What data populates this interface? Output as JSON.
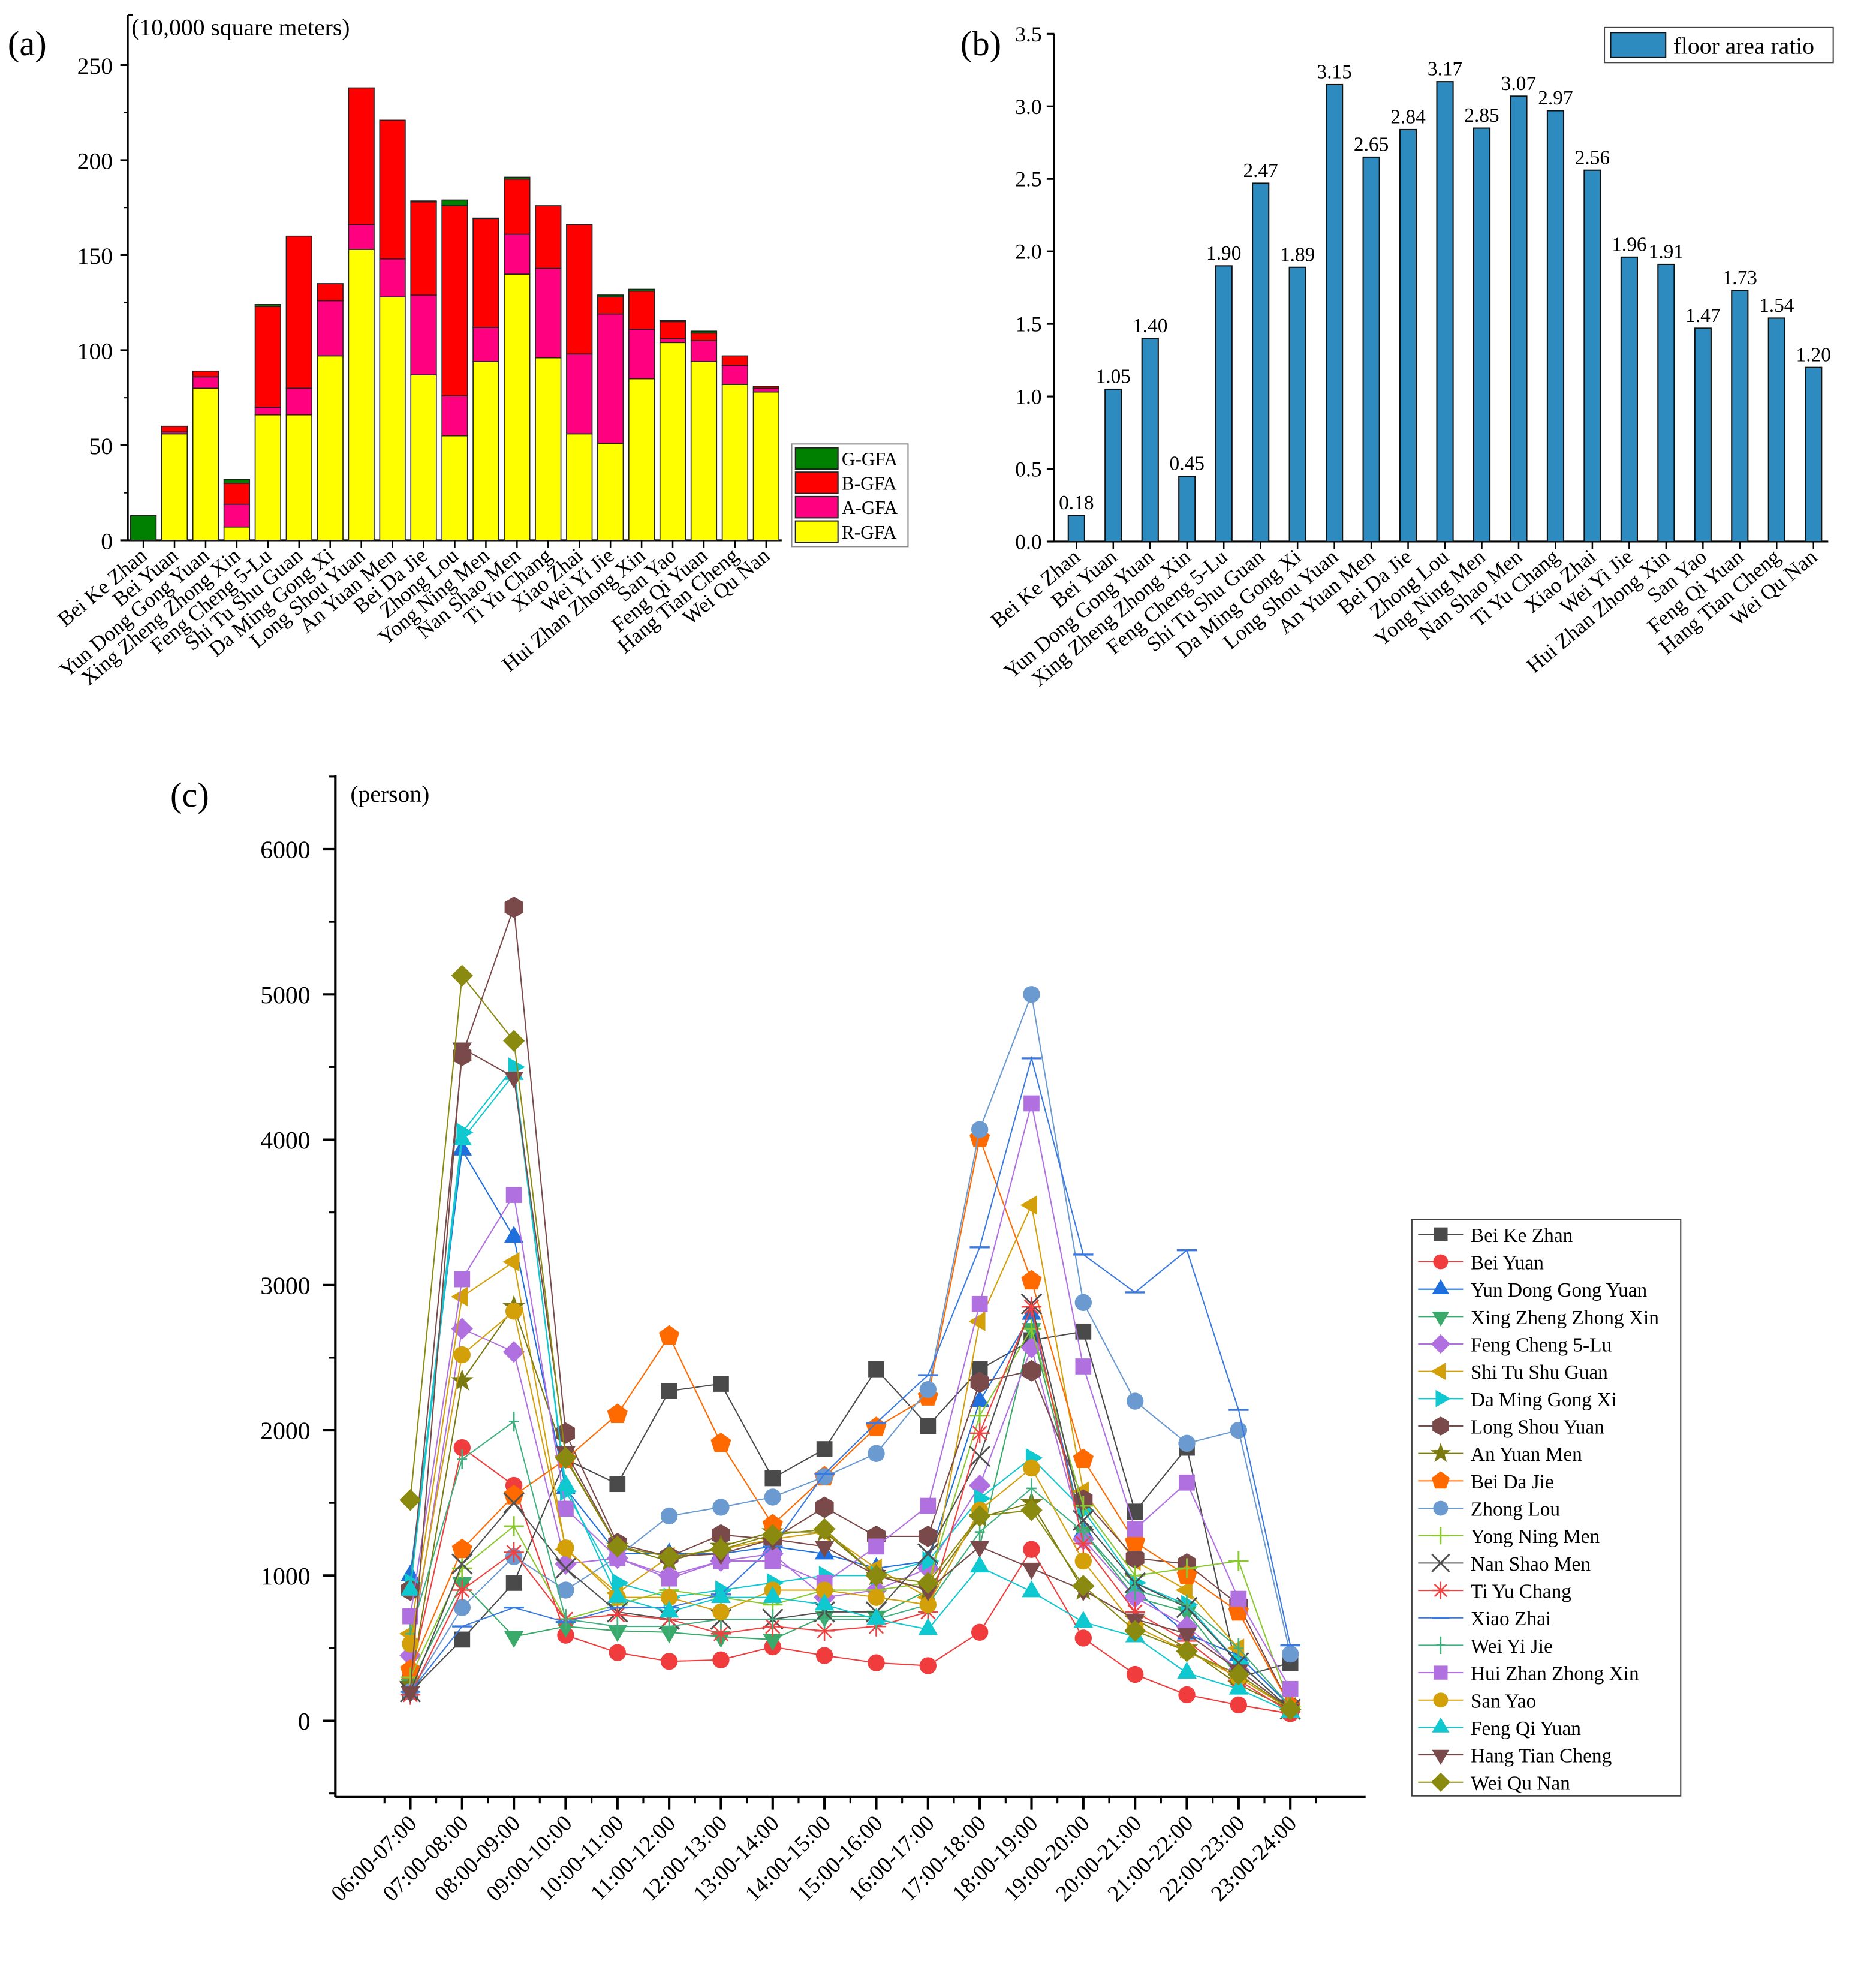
{
  "panel_labels": {
    "a": "(a)",
    "b": "(b)",
    "c": "(c)"
  },
  "chart_data": [
    {
      "type": "bar",
      "stacked": true,
      "id": "a",
      "ylabel": "(10,000 square meters)",
      "ylim": [
        0,
        250
      ],
      "yticks": [
        0,
        50,
        100,
        150,
        200,
        250
      ],
      "legend_position": "bottom-right",
      "categories": [
        "Bei Ke Zhan",
        "Bei Yuan",
        "Yun Dong Gong Yuan",
        "Xing Zheng Zhong Xin",
        "Feng Cheng 5-Lu",
        "Shi Tu Shu Guan",
        "Da Ming Gong Xi",
        "Long Shou Yuan",
        "An Yuan Men",
        "Bei Da Jie",
        "Zhong Lou",
        "Yong Ning Men",
        "Nan Shao Men",
        "Ti Yu Chang",
        "Xiao Zhai",
        "Wei Yi Jie",
        "Hui Zhan Zhong Xin",
        "San Yao",
        "Feng Qi Yuan",
        "Hang Tian Cheng",
        "Wei Qu Nan"
      ],
      "series": [
        {
          "name": "R-GFA",
          "color": "#ffff00",
          "values": [
            0,
            56,
            80,
            7,
            66,
            66,
            97,
            153,
            128,
            87,
            55,
            94,
            140,
            96,
            56,
            51,
            85,
            104,
            94,
            82,
            78
          ]
        },
        {
          "name": "A-GFA",
          "color": "#ff0080",
          "values": [
            0,
            1,
            6,
            12,
            4,
            14,
            29,
            13,
            20,
            42,
            21,
            18,
            21,
            47,
            42,
            68,
            26,
            2,
            11,
            10,
            2
          ]
        },
        {
          "name": "B-GFA",
          "color": "#ff0000",
          "values": [
            0,
            3,
            3,
            11,
            53,
            80,
            9,
            72,
            73,
            49,
            100,
            57,
            29,
            33,
            68,
            9,
            20,
            9,
            4,
            5,
            1
          ]
        },
        {
          "name": "G-GFA",
          "color": "#008000",
          "values": [
            13,
            0,
            0,
            2,
            1,
            0,
            0,
            0,
            0,
            0.5,
            3,
            0.5,
            1,
            0,
            0,
            1,
            1,
            0.5,
            1,
            0,
            0
          ]
        }
      ],
      "legend_order": [
        "G-GFA",
        "B-GFA",
        "A-GFA",
        "R-GFA"
      ]
    },
    {
      "type": "bar",
      "id": "b",
      "ylim": [
        0,
        3.5
      ],
      "yticks": [
        "0.0",
        "0.5",
        "1.0",
        "1.5",
        "2.0",
        "2.5",
        "3.0",
        "3.5"
      ],
      "legend_position": "top-right",
      "categories": [
        "Bei Ke Zhan",
        "Bei Yuan",
        "Yun Dong Gong Yuan",
        "Xing Zheng Zhong Xin",
        "Feng Cheng 5-Lu",
        "Shi Tu Shu Guan",
        "Da Ming Gong Xi",
        "Long Shou Yuan",
        "An Yuan Men",
        "Bei Da Jie",
        "Zhong Lou",
        "Yong Ning Men",
        "Nan Shao Men",
        "Ti Yu Chang",
        "Xiao Zhai",
        "Wei Yi Jie",
        "Hui Zhan Zhong Xin",
        "San Yao",
        "Feng Qi Yuan",
        "Hang Tian Cheng",
        "Wei Qu Nan"
      ],
      "series": [
        {
          "name": "floor area ratio",
          "color": "#2e8bc0",
          "values": [
            0.18,
            1.05,
            1.4,
            0.45,
            1.9,
            2.47,
            1.89,
            3.15,
            2.65,
            2.84,
            3.17,
            2.85,
            3.07,
            2.97,
            2.56,
            1.96,
            1.91,
            1.47,
            1.73,
            1.54,
            1.2
          ],
          "labels": [
            "0.18",
            "1.05",
            "1.40",
            "0.45",
            "1.90",
            "2.47",
            "1.89",
            "3.15",
            "2.65",
            "2.84",
            "3.17",
            "2.85",
            "3.07",
            "2.97",
            "2.56",
            "1.96",
            "1.91",
            "1.47",
            "1.73",
            "1.54",
            "1.20"
          ]
        }
      ]
    },
    {
      "type": "line",
      "id": "c",
      "ylabel": "(person)",
      "ylim": [
        -500,
        6500
      ],
      "yticks": [
        0,
        1000,
        2000,
        3000,
        4000,
        5000,
        6000
      ],
      "legend_position": "right",
      "x": [
        "06:00-07:00",
        "07:00-08:00",
        "08:00-09:00",
        "09:00-10:00",
        "10:00-11:00",
        "11:00-12:00",
        "12:00-13:00",
        "13:00-14:00",
        "14:00-15:00",
        "15:00-16:00",
        "16:00-17:00",
        "17:00-18:00",
        "18:00-19:00",
        "19:00-20:00",
        "20:00-21:00",
        "21:00-22:00",
        "22:00-23:00",
        "23:00-24:00"
      ],
      "series": [
        {
          "name": "Bei Ke Zhan",
          "color": "#4a4a4a",
          "marker": "square",
          "values": [
            200,
            560,
            950,
            1800,
            1630,
            2270,
            2320,
            1670,
            1870,
            2420,
            2030,
            2420,
            2620,
            2680,
            1440,
            1880,
            300,
            400
          ]
        },
        {
          "name": "Bei Yuan",
          "color": "#f03c3c",
          "marker": "circle",
          "values": [
            300,
            1880,
            1620,
            590,
            470,
            410,
            420,
            510,
            450,
            400,
            380,
            610,
            1180,
            570,
            320,
            180,
            110,
            50
          ]
        },
        {
          "name": "Yun Dong Gong Yuan",
          "color": "#1f6fdc",
          "marker": "triangle-up",
          "values": [
            1000,
            3930,
            3330,
            1600,
            1150,
            1150,
            1150,
            1200,
            1150,
            1050,
            1100,
            2200,
            2800,
            1300,
            900,
            600,
            450,
            100
          ]
        },
        {
          "name": "Xing Zheng Zhong Xin",
          "color": "#3aaa6a",
          "marker": "triangle-down",
          "values": [
            250,
            950,
            580,
            650,
            620,
            610,
            580,
            560,
            720,
            720,
            900,
            1200,
            2700,
            1300,
            850,
            750,
            300,
            80
          ]
        },
        {
          "name": "Feng Cheng 5-Lu",
          "color": "#b070e0",
          "marker": "diamond",
          "values": [
            450,
            2700,
            2540,
            1080,
            1120,
            1000,
            1100,
            1150,
            850,
            900,
            1050,
            1620,
            2570,
            1250,
            850,
            650,
            350,
            80
          ]
        },
        {
          "name": "Shi Tu Shu Guan",
          "color": "#d4a00a",
          "marker": "triangle-left",
          "values": [
            600,
            2920,
            3160,
            1180,
            880,
            1130,
            1180,
            1250,
            1300,
            1050,
            850,
            2750,
            3550,
            1580,
            1100,
            900,
            500,
            100
          ]
        },
        {
          "name": "Da Ming Gong Xi",
          "color": "#10c8d0",
          "marker": "triangle-right",
          "values": [
            950,
            4050,
            4500,
            1580,
            950,
            850,
            900,
            950,
            1000,
            1000,
            1100,
            1530,
            1810,
            1450,
            950,
            800,
            400,
            80
          ]
        },
        {
          "name": "Long Shou Yuan",
          "color": "#7a4a4a",
          "marker": "hexagon",
          "values": [
            900,
            4580,
            5600,
            1980,
            1220,
            1130,
            1280,
            1250,
            1470,
            1270,
            1270,
            2330,
            2410,
            1520,
            1120,
            1080,
            800,
            100
          ]
        },
        {
          "name": "An Yuan Men",
          "color": "#7a7a10",
          "marker": "star",
          "values": [
            250,
            2340,
            2850,
            1800,
            1200,
            1100,
            1200,
            1300,
            1300,
            1000,
            900,
            1400,
            1500,
            900,
            700,
            500,
            250,
            80
          ]
        },
        {
          "name": "Bei Da Jie",
          "color": "#ff6a00",
          "marker": "pentagon",
          "values": [
            350,
            1180,
            1550,
            1800,
            2110,
            2650,
            1910,
            1350,
            1680,
            2020,
            2230,
            4010,
            3030,
            1800,
            1230,
            1000,
            750,
            100
          ]
        },
        {
          "name": "Zhong Lou",
          "color": "#6a9ad0",
          "marker": "circle",
          "values": [
            200,
            780,
            1130,
            900,
            1130,
            1410,
            1470,
            1540,
            1680,
            1840,
            2280,
            4070,
            5000,
            2880,
            2200,
            1910,
            2000,
            460
          ]
        },
        {
          "name": "Yong Ning Men",
          "color": "#8ac830",
          "marker": "plus",
          "values": [
            300,
            1050,
            1340,
            700,
            800,
            900,
            850,
            800,
            900,
            900,
            950,
            2100,
            2700,
            1480,
            1000,
            1050,
            1100,
            100
          ]
        },
        {
          "name": "Nan Shao Men",
          "color": "#505050",
          "marker": "x",
          "values": [
            200,
            1080,
            1500,
            1050,
            750,
            700,
            700,
            700,
            750,
            750,
            1150,
            1820,
            2870,
            1380,
            950,
            780,
            400,
            80
          ]
        },
        {
          "name": "Ti Yu Chang",
          "color": "#f04040",
          "marker": "asterisk",
          "values": [
            180,
            900,
            1160,
            700,
            730,
            700,
            600,
            650,
            620,
            650,
            750,
            1980,
            2850,
            1220,
            750,
            550,
            280,
            60
          ]
        },
        {
          "name": "Xiao Zhai",
          "color": "#3a7ae0",
          "marker": "dash",
          "values": [
            200,
            650,
            780,
            680,
            780,
            780,
            870,
            1200,
            1700,
            2050,
            2380,
            3260,
            4560,
            3210,
            2950,
            3240,
            2140,
            520
          ]
        },
        {
          "name": "Wei Yi Jie",
          "color": "#40b080",
          "marker": "vbar",
          "values": [
            600,
            1800,
            2060,
            700,
            650,
            650,
            700,
            700,
            700,
            700,
            800,
            1300,
            1600,
            1300,
            900,
            800,
            500,
            100
          ]
        },
        {
          "name": "Hui Zhan Zhong Xin",
          "color": "#b070e0",
          "marker": "square",
          "values": [
            720,
            3040,
            3620,
            1460,
            1120,
            980,
            1100,
            1100,
            950,
            1200,
            1480,
            2870,
            4250,
            2440,
            1320,
            1640,
            840,
            220
          ]
        },
        {
          "name": "San Yao",
          "color": "#d4a00a",
          "marker": "circle",
          "values": [
            530,
            2520,
            2820,
            1190,
            850,
            850,
            750,
            900,
            900,
            850,
            800,
            1450,
            1740,
            1100,
            650,
            480,
            300,
            80
          ]
        },
        {
          "name": "Feng Qi Yuan",
          "color": "#10c8d0",
          "marker": "triangle-up",
          "values": [
            900,
            4000,
            4450,
            1620,
            850,
            750,
            850,
            850,
            800,
            700,
            630,
            1060,
            890,
            680,
            580,
            330,
            220,
            60
          ]
        },
        {
          "name": "Hang Tian Cheng",
          "color": "#7a4a4a",
          "marker": "triangle-down",
          "values": [
            200,
            4630,
            4430,
            1850,
            1200,
            1130,
            1150,
            1250,
            1200,
            1000,
            900,
            1200,
            1050,
            900,
            700,
            600,
            350,
            80
          ]
        },
        {
          "name": "Wei Qu Nan",
          "color": "#8a8a10",
          "marker": "diamond",
          "values": [
            1520,
            5130,
            4680,
            1810,
            1200,
            1130,
            1180,
            1280,
            1320,
            1000,
            950,
            1410,
            1450,
            930,
            620,
            480,
            320,
            80
          ]
        }
      ]
    }
  ]
}
